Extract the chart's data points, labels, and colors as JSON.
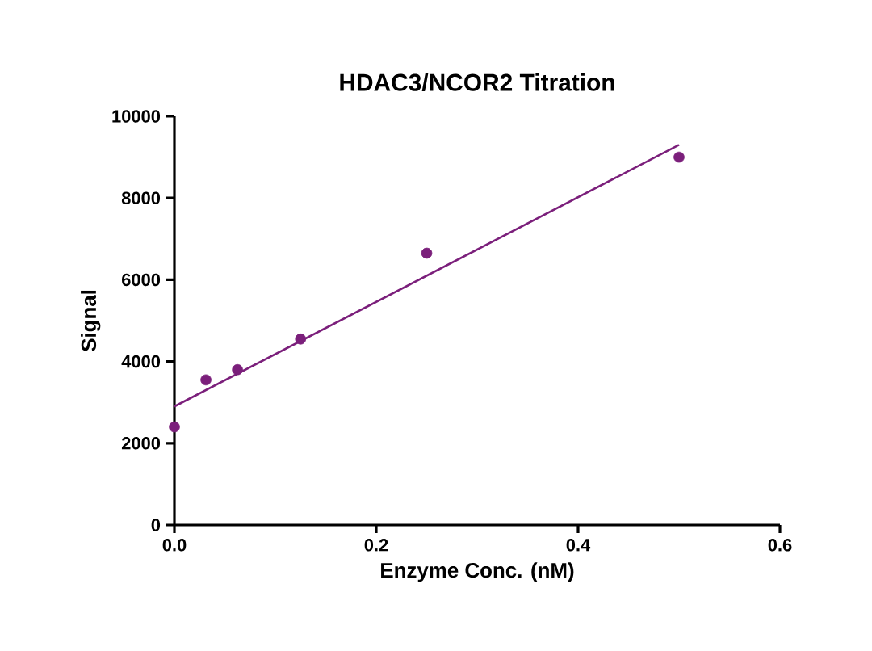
{
  "chart_data": {
    "type": "scatter",
    "title": "HDAC3/NCOR2 Titration",
    "xlabel": "Enzyme Conc. (nM)",
    "ylabel": "Signal",
    "xlim": [
      0,
      0.6
    ],
    "ylim": [
      0,
      10000
    ],
    "xticks": [
      {
        "value": 0,
        "label": "0.0"
      },
      0.2,
      0.4,
      0.6
    ],
    "yticks": [
      0,
      2000,
      4000,
      6000,
      8000,
      10000
    ],
    "grid": false,
    "series": [
      {
        "color": "#7b1f7b",
        "marker": "circle",
        "x": [
          0,
          0.03125,
          0.0625,
          0.125,
          0.25,
          0.5
        ],
        "values": [
          2400,
          3550,
          3800,
          4550,
          6650,
          9000
        ]
      },
      {
        "type": "line",
        "marker": "none",
        "color": "#7b1f7b",
        "x": [
          0,
          0.5
        ],
        "values": [
          2900,
          9300
        ]
      }
    ]
  }
}
